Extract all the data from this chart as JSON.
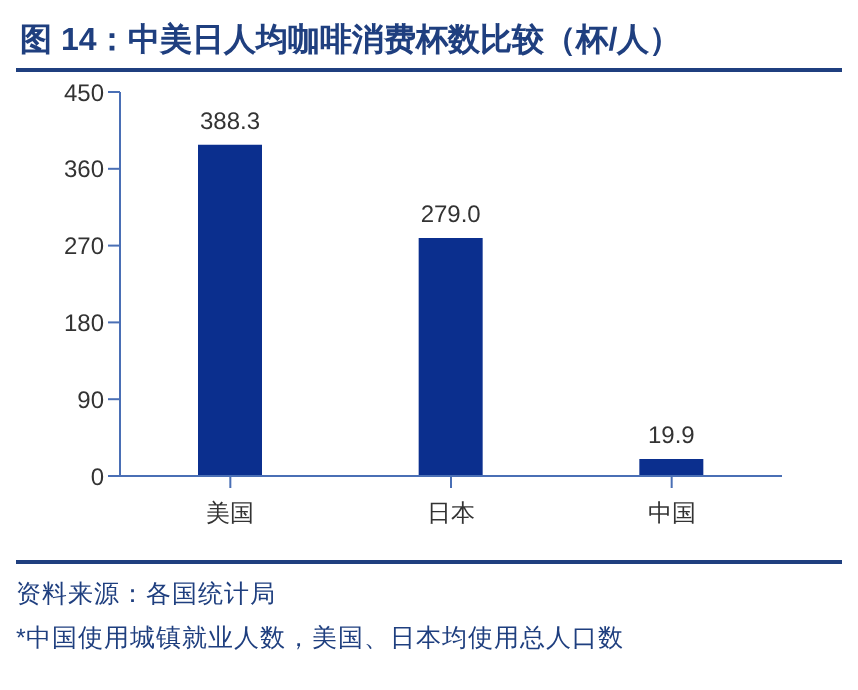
{
  "chart_data": {
    "type": "bar",
    "title": "图 14：中美日人均咖啡消费杯数比较（杯/人）",
    "categories": [
      "美国",
      "日本",
      "中国"
    ],
    "values": [
      388.3,
      279.0,
      19.9
    ],
    "value_labels": [
      "388.3",
      "279.0",
      "19.9"
    ],
    "color": "#0b2f8e",
    "ylim": [
      0,
      450
    ],
    "yticks": [
      0,
      90,
      180,
      270,
      360,
      450
    ],
    "grid": false,
    "annotations": [
      "资料来源：各国统计局",
      "*中国使用城镇就业人数，美国、日本均使用总人口数"
    ]
  }
}
